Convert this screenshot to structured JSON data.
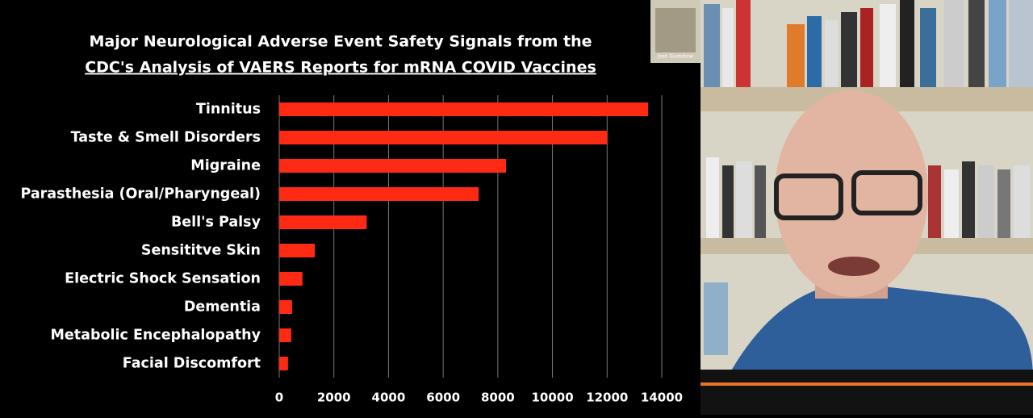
{
  "chart_data": {
    "type": "hbar",
    "title": "Major Neurological Adverse Event Safety Signals from the",
    "subtitle": "CDC's Analysis of VAERS Reports for mRNA COVID Vaccines",
    "categories": [
      "Tinnitus",
      "Taste & Smell Disorders",
      "Migraine",
      "Parasthesia (Oral/Pharyngeal)",
      "Bell's Palsy",
      "Sensititve Skin",
      "Electric Shock Sensation",
      "Dementia",
      "Metabolic Encephalopathy",
      "Facial Discomfort"
    ],
    "values": [
      13500,
      12000,
      8300,
      7300,
      3200,
      1300,
      850,
      470,
      440,
      320
    ],
    "color": "#ff2a14",
    "xlim": [
      0,
      14000
    ],
    "xticks": [
      0,
      2000,
      4000,
      6000,
      8000,
      10000,
      12000,
      14000
    ],
    "grid": true
  },
  "video": {
    "participant_name": "Josh Guetzkow"
  }
}
